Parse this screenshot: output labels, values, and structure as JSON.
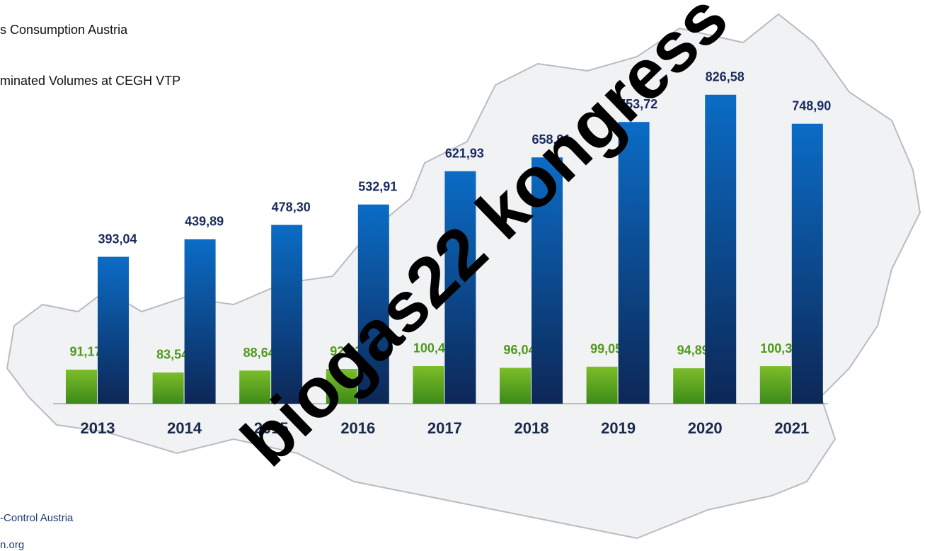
{
  "chart_data": {
    "type": "bar",
    "categories": [
      "2013",
      "2014",
      "2015",
      "2016",
      "2017",
      "2018",
      "2019",
      "2020",
      "2021"
    ],
    "series": [
      {
        "name": "s Consumption Austria",
        "color": "#5da21c",
        "values": [
          91.17,
          83.54,
          88.64,
          92.82,
          100.49,
          96.04,
          99.05,
          94.89,
          100.31
        ],
        "value_labels": [
          "91,17",
          "83,54",
          "88,64",
          "92,82",
          "100,49",
          "96,04",
          "99,05",
          "94,89",
          "100,31"
        ]
      },
      {
        "name": "minated Volumes at CEGH VTP",
        "color": "#0b63b8",
        "values": [
          393.04,
          439.89,
          478.3,
          532.91,
          621.93,
          658.91,
          753.72,
          826.58,
          748.9
        ],
        "value_labels": [
          "393,04",
          "439,89",
          "478,30",
          "532,91",
          "621,93",
          "658,91",
          "753,72",
          "826,58",
          "748,90"
        ]
      }
    ],
    "ylim": [
      0,
      900
    ],
    "source": [
      "-Control Austria",
      "n.org"
    ],
    "watermark": "biogas22 kongress"
  }
}
